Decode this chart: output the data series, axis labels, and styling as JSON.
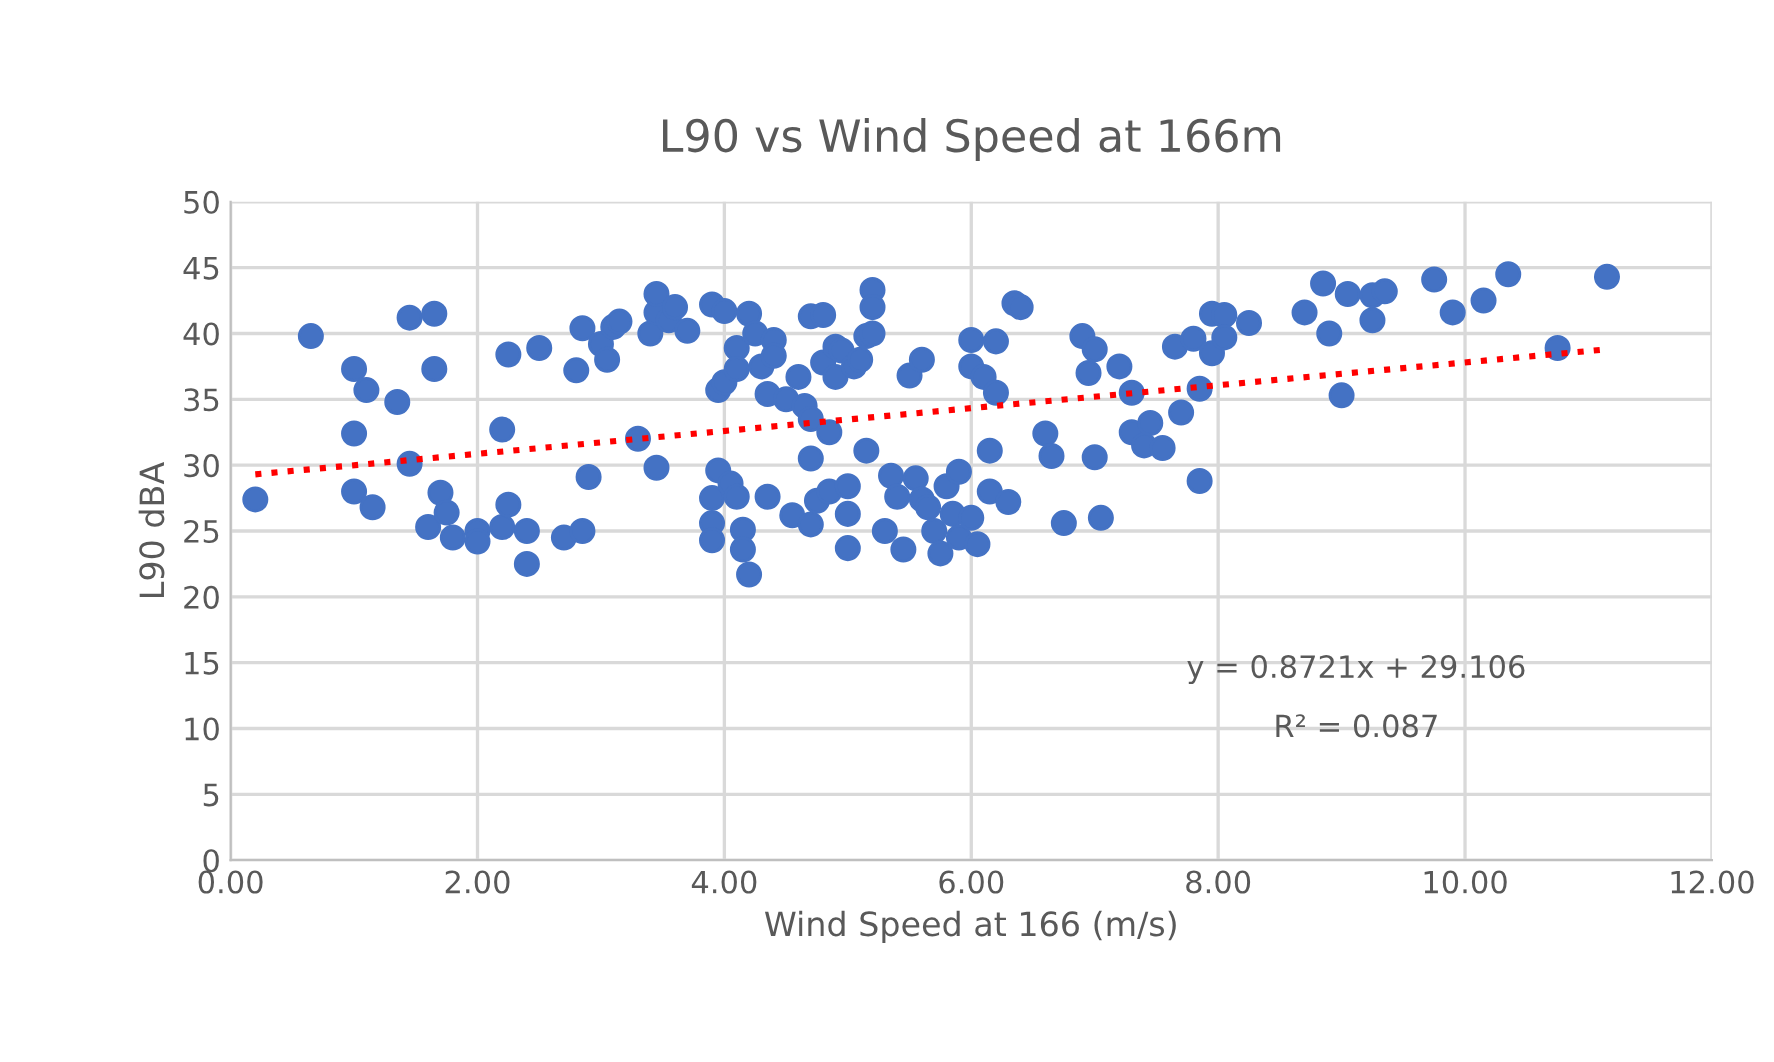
{
  "chart_data": {
    "type": "scatter",
    "title": "L90 vs Wind Speed at 166m",
    "xlabel": "Wind Speed at 166 (m/s)",
    "ylabel": "L90 dBA",
    "xlim": [
      0,
      12
    ],
    "xticks": [
      {
        "value": 0,
        "label": "0.00"
      },
      {
        "value": 2,
        "label": "2.00"
      },
      {
        "value": 4,
        "label": "4.00"
      },
      {
        "value": 6,
        "label": "6.00"
      },
      {
        "value": 8,
        "label": "8.00"
      },
      {
        "value": 10,
        "label": "10.00"
      },
      {
        "value": 12,
        "label": "12.00"
      }
    ],
    "ylim": [
      0,
      50
    ],
    "yticks": [
      0,
      5,
      10,
      15,
      20,
      25,
      30,
      35,
      40,
      45,
      50
    ],
    "grid": true,
    "marker": "circle",
    "annotations": [
      "y = 0.8721x + 29.106",
      "R² = 0.087"
    ],
    "series": [
      {
        "color": "#4472c4",
        "x": [
          0.2,
          0.65,
          1.0,
          1.0,
          1.0,
          1.1,
          1.15,
          1.35,
          1.45,
          1.45,
          1.6,
          1.65,
          1.65,
          1.7,
          1.75,
          1.8,
          2.0,
          2.0,
          2.2,
          2.2,
          2.25,
          2.25,
          2.4,
          2.4,
          2.5,
          2.7,
          2.8,
          2.85,
          2.85,
          2.9,
          3.0,
          3.05,
          3.1,
          3.15,
          3.3,
          3.4,
          3.45,
          3.45,
          3.45,
          3.55,
          3.6,
          3.7,
          3.9,
          3.9,
          3.9,
          3.9,
          3.95,
          3.95,
          4.0,
          4.0,
          4.05,
          4.1,
          4.1,
          4.1,
          4.15,
          4.15,
          4.2,
          4.2,
          4.25,
          4.3,
          4.35,
          4.35,
          4.4,
          4.4,
          4.5,
          4.55,
          4.6,
          4.65,
          4.7,
          4.7,
          4.7,
          4.7,
          4.75,
          4.8,
          4.8,
          4.85,
          4.85,
          4.9,
          4.9,
          4.95,
          5.0,
          5.0,
          5.0,
          5.05,
          5.1,
          5.15,
          5.15,
          5.2,
          5.2,
          5.2,
          5.3,
          5.35,
          5.4,
          5.45,
          5.5,
          5.55,
          5.6,
          5.6,
          5.65,
          5.7,
          5.75,
          5.8,
          5.85,
          5.9,
          5.9,
          6.0,
          6.0,
          6.0,
          6.05,
          6.1,
          6.15,
          6.15,
          6.2,
          6.2,
          6.3,
          6.35,
          6.4,
          6.6,
          6.65,
          6.75,
          6.9,
          6.95,
          7.0,
          7.0,
          7.05,
          7.2,
          7.3,
          7.3,
          7.4,
          7.45,
          7.55,
          7.65,
          7.7,
          7.8,
          7.85,
          7.85,
          7.95,
          7.95,
          8.05,
          8.05,
          8.25,
          8.7,
          8.85,
          8.9,
          9.0,
          9.05,
          9.25,
          9.25,
          9.35,
          9.75,
          9.9,
          10.15,
          10.35,
          10.75,
          11.15
        ],
        "values": [
          27.4,
          39.8,
          37.3,
          32.4,
          28.0,
          35.7,
          26.8,
          34.8,
          41.2,
          30.1,
          25.3,
          37.3,
          41.5,
          27.9,
          26.4,
          24.5,
          25.0,
          24.2,
          32.7,
          25.3,
          27.0,
          38.4,
          22.5,
          25.0,
          38.9,
          24.5,
          37.2,
          40.4,
          25.0,
          29.1,
          39.2,
          38.0,
          40.5,
          40.9,
          32.0,
          40.0,
          41.6,
          43.0,
          29.8,
          41.0,
          42.0,
          40.2,
          42.2,
          27.5,
          25.6,
          24.3,
          35.7,
          29.6,
          41.7,
          36.3,
          28.6,
          38.9,
          37.3,
          27.6,
          25.1,
          23.6,
          41.5,
          21.7,
          40.0,
          37.5,
          35.4,
          27.6,
          39.5,
          38.3,
          35.0,
          26.2,
          36.7,
          34.5,
          41.3,
          33.5,
          30.5,
          25.5,
          27.3,
          41.4,
          37.8,
          32.5,
          28.0,
          39.0,
          36.7,
          38.7,
          28.4,
          26.3,
          23.7,
          37.5,
          38.0,
          31.1,
          39.8,
          43.3,
          42.0,
          40.0,
          25.0,
          29.2,
          27.6,
          23.6,
          36.8,
          29.0,
          38.0,
          27.4,
          26.8,
          25.0,
          23.3,
          28.4,
          26.3,
          24.5,
          29.5,
          39.5,
          37.5,
          26.0,
          24.0,
          36.7,
          31.1,
          28.0,
          39.4,
          35.5,
          27.2,
          42.3,
          42.0,
          32.4,
          30.7,
          25.6,
          39.8,
          37.0,
          38.8,
          30.6,
          26.0,
          37.5,
          35.5,
          32.5,
          31.5,
          33.2,
          31.3,
          39.0,
          34.0,
          39.6,
          35.8,
          28.8,
          38.5,
          41.5,
          41.4,
          39.7,
          40.8,
          41.6,
          43.8,
          40.0,
          35.3,
          43.0,
          42.9,
          41.0,
          43.2,
          44.1,
          41.6,
          42.5,
          44.5,
          38.9,
          44.3
        ]
      },
      {
        "type": "line",
        "color": "#ff0000",
        "line_style": "dotted",
        "marker": "none",
        "x": [
          0.2,
          11.15
        ],
        "values": [
          29.3,
          38.8
        ]
      }
    ]
  }
}
